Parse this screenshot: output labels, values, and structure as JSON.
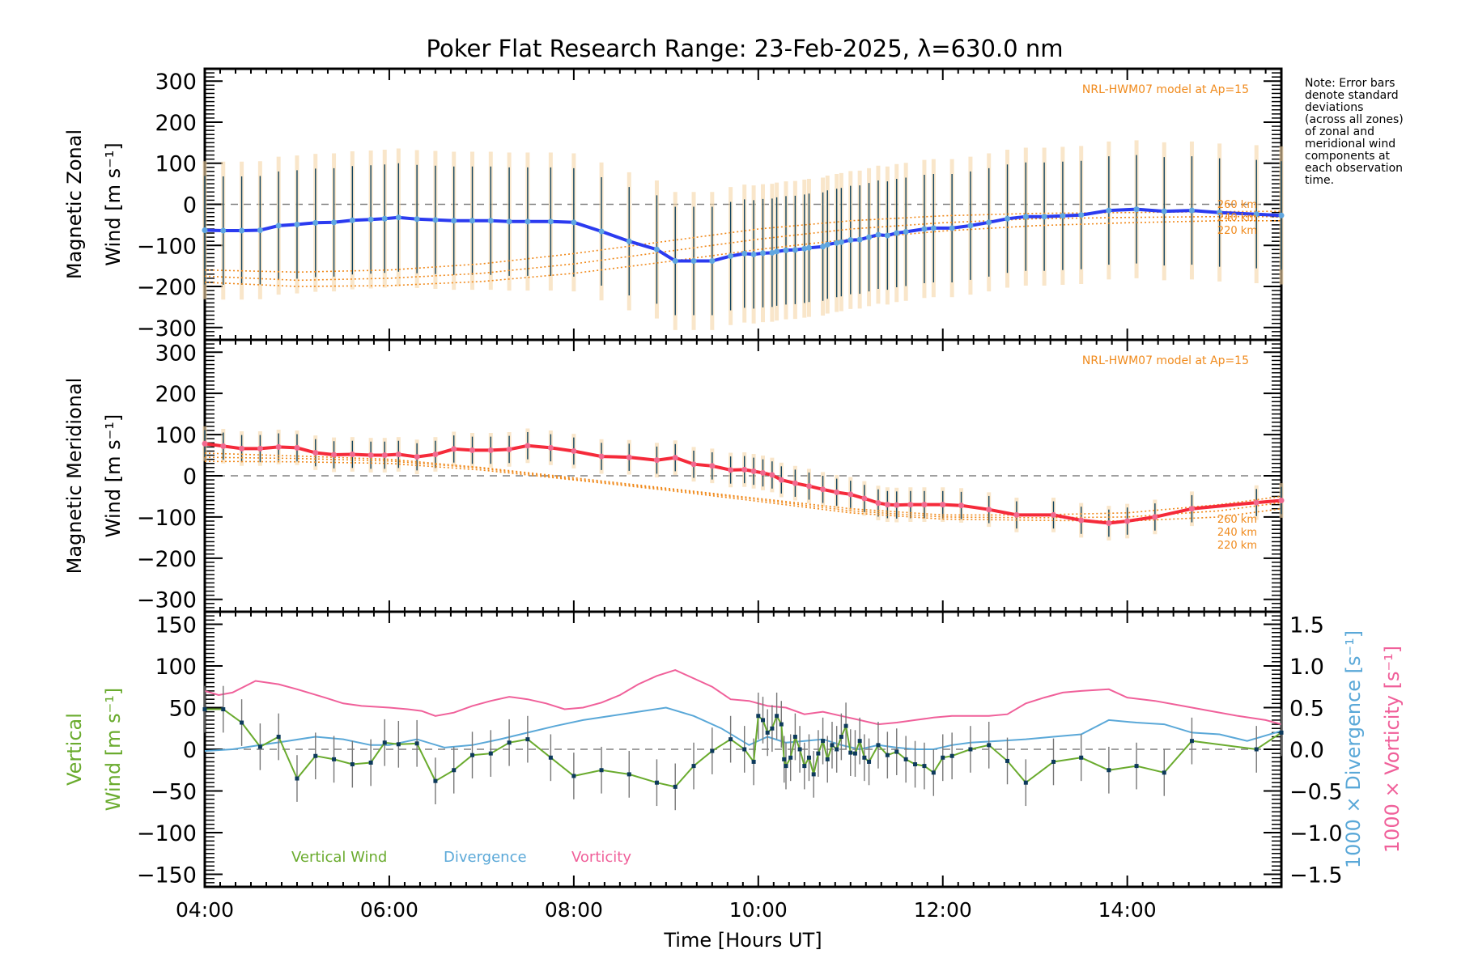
{
  "chart_data": {
    "type": "line",
    "title": "Poker Flat Research Range: 23-Feb-2025, λ=630.0 nm",
    "xlabel": "Time [Hours UT]",
    "x_ticks": [
      "04:00",
      "06:00",
      "08:00",
      "10:00",
      "12:00",
      "14:00"
    ],
    "xlim_hours": [
      4.0,
      15.67
    ],
    "note": "Note: Error bars\ndenote standard\ndeviations\n(across all zones)\nof zonal and\nmeridional wind\ncomponents at\neach observation\ntime.",
    "panels": [
      {
        "id": "zonal",
        "ylabel_line1": "Magnetic Zonal",
        "ylabel_line2": "Wind [m s⁻¹]",
        "ylim": [
          -330,
          330
        ],
        "y_ticks": [
          300,
          200,
          100,
          0,
          -100,
          -200,
          -300
        ],
        "model_label": "NRL-HWM07 model at Ap=15",
        "model_altitudes": [
          "260 km",
          "240 km",
          "220 km"
        ],
        "series": [
          {
            "name": "Zonal wind",
            "color": "#2b3bf0",
            "x": [
              4.0,
              4.2,
              4.4,
              4.6,
              4.8,
              5.0,
              5.2,
              5.4,
              5.6,
              5.8,
              5.95,
              6.1,
              6.3,
              6.5,
              6.7,
              6.9,
              7.1,
              7.3,
              7.5,
              7.75,
              8.0,
              8.3,
              8.6,
              8.9,
              9.1,
              9.3,
              9.5,
              9.7,
              9.85,
              9.95,
              10.05,
              10.15,
              10.2,
              10.3,
              10.4,
              10.5,
              10.55,
              10.7,
              10.75,
              10.85,
              10.9,
              11.0,
              11.1,
              11.2,
              11.3,
              11.4,
              11.5,
              11.6,
              11.8,
              11.9,
              12.1,
              12.3,
              12.5,
              12.7,
              12.9,
              13.1,
              13.3,
              13.5,
              13.8,
              14.1,
              14.4,
              14.7,
              15.0,
              15.4,
              15.67
            ],
            "y": [
              -63,
              -64,
              -64,
              -63,
              -52,
              -49,
              -45,
              -44,
              -39,
              -37,
              -35,
              -32,
              -36,
              -38,
              -40,
              -40,
              -40,
              -42,
              -42,
              -42,
              -44,
              -66,
              -90,
              -110,
              -138,
              -138,
              -138,
              -126,
              -120,
              -122,
              -119,
              -118,
              -115,
              -112,
              -111,
              -108,
              -106,
              -103,
              -98,
              -94,
              -92,
              -87,
              -86,
              -80,
              -74,
              -76,
              -70,
              -67,
              -60,
              -58,
              -58,
              -52,
              -44,
              -35,
              -30,
              -30,
              -28,
              -26,
              -15,
              -12,
              -17,
              -15,
              -20,
              -24,
              -27
            ]
          },
          {
            "name": "HWM07 260 km",
            "color": "#f08a1c",
            "dash": "dotted",
            "x": [
              4.0,
              5.0,
              6.0,
              7.0,
              8.0,
              9.0,
              10.0,
              11.0,
              12.0,
              13.0,
              14.0,
              15.0,
              15.67
            ],
            "y": [
              -160,
              -165,
              -160,
              -145,
              -120,
              -90,
              -60,
              -40,
              -28,
              -22,
              -20,
              -18,
              -17
            ]
          },
          {
            "name": "HWM07 240 km",
            "color": "#f08a1c",
            "dash": "dotted",
            "x": [
              4.0,
              5.0,
              6.0,
              7.0,
              8.0,
              9.0,
              10.0,
              11.0,
              12.0,
              13.0,
              14.0,
              15.0,
              15.67
            ],
            "y": [
              -175,
              -185,
              -180,
              -168,
              -145,
              -115,
              -85,
              -60,
              -45,
              -35,
              -32,
              -30,
              -30
            ]
          },
          {
            "name": "HWM07 220 km",
            "color": "#f08a1c",
            "dash": "dotted",
            "x": [
              4.0,
              5.0,
              6.0,
              7.0,
              8.0,
              9.0,
              10.0,
              11.0,
              12.0,
              13.0,
              14.0,
              15.0,
              15.67
            ],
            "y": [
              -190,
              -200,
              -198,
              -188,
              -168,
              -140,
              -110,
              -85,
              -65,
              -52,
              -45,
              -40,
              -40
            ]
          }
        ]
      },
      {
        "id": "meridional",
        "ylabel_line1": "Magnetic Meridional",
        "ylabel_line2": "Wind [m s⁻¹]",
        "ylim": [
          -330,
          330
        ],
        "y_ticks": [
          300,
          200,
          100,
          0,
          -100,
          -200,
          -300
        ],
        "model_label": "NRL-HWM07 model at Ap=15",
        "model_altitudes": [
          "260 km",
          "240 km",
          "220 km"
        ],
        "series": [
          {
            "name": "Meridional wind",
            "color": "#f52a3a",
            "x": [
              4.0,
              4.2,
              4.4,
              4.6,
              4.8,
              5.0,
              5.2,
              5.4,
              5.6,
              5.8,
              5.95,
              6.1,
              6.3,
              6.5,
              6.7,
              6.9,
              7.1,
              7.3,
              7.5,
              7.75,
              8.0,
              8.3,
              8.6,
              8.9,
              9.1,
              9.3,
              9.5,
              9.7,
              9.85,
              9.95,
              10.05,
              10.15,
              10.25,
              10.4,
              10.55,
              10.7,
              10.85,
              11.0,
              11.15,
              11.3,
              11.4,
              11.5,
              11.65,
              11.8,
              12.0,
              12.2,
              12.5,
              12.8,
              13.2,
              13.5,
              13.8,
              14.0,
              14.3,
              14.7,
              15.4,
              15.67
            ],
            "y": [
              78,
              72,
              66,
              66,
              70,
              68,
              56,
              51,
              52,
              50,
              50,
              52,
              46,
              52,
              65,
              62,
              62,
              64,
              73,
              68,
              60,
              47,
              45,
              38,
              44,
              28,
              24,
              14,
              15,
              11,
              7,
              2,
              -10,
              -18,
              -25,
              -33,
              -40,
              -45,
              -55,
              -66,
              -70,
              -71,
              -70,
              -70,
              -70,
              -72,
              -82,
              -95,
              -95,
              -108,
              -115,
              -110,
              -100,
              -80,
              -65,
              -60
            ]
          },
          {
            "name": "HWM07 260 km",
            "color": "#f08a1c",
            "dash": "dotted",
            "x": [
              4.0,
              5.0,
              6.0,
              7.0,
              8.0,
              9.0,
              10.0,
              11.0,
              12.0,
              13.0,
              14.0,
              15.0,
              15.67
            ],
            "y": [
              55,
              48,
              40,
              20,
              -5,
              -30,
              -55,
              -80,
              -95,
              -95,
              -90,
              -70,
              -50
            ]
          },
          {
            "name": "HWM07 240 km",
            "color": "#f08a1c",
            "dash": "dotted",
            "x": [
              4.0,
              5.0,
              6.0,
              7.0,
              8.0,
              9.0,
              10.0,
              11.0,
              12.0,
              13.0,
              14.0,
              15.0,
              15.67
            ],
            "y": [
              45,
              42,
              36,
              18,
              -8,
              -32,
              -58,
              -85,
              -100,
              -102,
              -100,
              -85,
              -65
            ]
          },
          {
            "name": "HWM07 220 km",
            "color": "#f08a1c",
            "dash": "dotted",
            "x": [
              4.0,
              5.0,
              6.0,
              7.0,
              8.0,
              9.0,
              10.0,
              11.0,
              12.0,
              13.0,
              14.0,
              15.0,
              15.67
            ],
            "y": [
              35,
              34,
              30,
              14,
              -10,
              -35,
              -62,
              -90,
              -105,
              -108,
              -110,
              -100,
              -80
            ]
          }
        ]
      },
      {
        "id": "vertical",
        "ylabel_line1": "Vertical",
        "ylabel_line2": "Wind [m s⁻¹]",
        "ylim": [
          -165,
          165
        ],
        "y_ticks": [
          150,
          100,
          50,
          0,
          -50,
          -100,
          -150
        ],
        "right_ylabel_1": "1000 × Divergence [s⁻¹]",
        "right_ylabel_2": "1000 × Vorticity [s⁻¹]",
        "right_ylim": [
          -1.65,
          1.65
        ],
        "right_ticks": [
          1.5,
          1.0,
          0.5,
          0.0,
          -0.5,
          -1.0,
          -1.5
        ],
        "legend": [
          "Vertical Wind",
          "Divergence",
          "Vorticity"
        ],
        "series": [
          {
            "name": "Vertical Wind",
            "color": "#6aab2e",
            "x": [
              4.0,
              4.2,
              4.4,
              4.6,
              4.8,
              5.0,
              5.2,
              5.4,
              5.6,
              5.8,
              5.95,
              6.1,
              6.3,
              6.5,
              6.7,
              6.9,
              7.1,
              7.3,
              7.5,
              7.75,
              8.0,
              8.3,
              8.6,
              8.9,
              9.1,
              9.3,
              9.5,
              9.7,
              9.85,
              9.95,
              10.0,
              10.05,
              10.1,
              10.15,
              10.2,
              10.25,
              10.28,
              10.3,
              10.35,
              10.4,
              10.45,
              10.5,
              10.55,
              10.6,
              10.65,
              10.7,
              10.75,
              10.8,
              10.85,
              10.9,
              10.95,
              11.0,
              11.05,
              11.1,
              11.15,
              11.2,
              11.3,
              11.4,
              11.5,
              11.6,
              11.7,
              11.8,
              11.9,
              12.0,
              12.1,
              12.3,
              12.5,
              12.7,
              12.9,
              13.2,
              13.5,
              13.8,
              14.1,
              14.4,
              14.7,
              15.4,
              15.67
            ],
            "y": [
              48,
              48,
              32,
              3,
              15,
              -35,
              -8,
              -12,
              -18,
              -16,
              8,
              6,
              7,
              -38,
              -25,
              -7,
              -5,
              8,
              12,
              -10,
              -32,
              -25,
              -30,
              -40,
              -45,
              -20,
              -2,
              12,
              0,
              -15,
              40,
              35,
              20,
              25,
              40,
              30,
              -12,
              -20,
              -10,
              15,
              0,
              -20,
              -10,
              -30,
              -5,
              10,
              -12,
              5,
              0,
              15,
              28,
              -4,
              -5,
              10,
              -10,
              -15,
              5,
              -7,
              -3,
              -12,
              -18,
              -20,
              -28,
              -10,
              -8,
              0,
              5,
              -14,
              -40,
              -15,
              -10,
              -25,
              -20,
              -28,
              10,
              0,
              20
            ]
          },
          {
            "name": "Divergence",
            "color": "#5aa8d8",
            "axis": "right",
            "x": [
              4.0,
              4.3,
              4.6,
              4.9,
              5.2,
              5.5,
              5.8,
              6.0,
              6.3,
              6.6,
              6.9,
              7.2,
              7.5,
              7.8,
              8.1,
              8.4,
              8.7,
              9.0,
              9.3,
              9.6,
              9.9,
              10.1,
              10.3,
              10.5,
              10.7,
              10.9,
              11.1,
              11.3,
              11.5,
              11.7,
              11.9,
              12.1,
              12.3,
              12.6,
              12.9,
              13.2,
              13.5,
              13.8,
              14.1,
              14.4,
              14.7,
              15.0,
              15.3,
              15.67
            ],
            "y": [
              -0.02,
              0.0,
              0.05,
              0.1,
              0.15,
              0.12,
              0.05,
              0.05,
              0.12,
              0.02,
              0.05,
              0.12,
              0.2,
              0.28,
              0.35,
              0.4,
              0.45,
              0.5,
              0.4,
              0.25,
              0.05,
              0.15,
              0.08,
              0.1,
              0.12,
              0.05,
              0.0,
              0.05,
              0.02,
              0.0,
              0.0,
              0.05,
              0.08,
              0.1,
              0.12,
              0.15,
              0.18,
              0.35,
              0.32,
              0.3,
              0.2,
              0.18,
              0.1,
              0.22
            ]
          },
          {
            "name": "Vorticity",
            "color": "#f0609a",
            "axis": "right",
            "x": [
              4.0,
              4.15,
              4.3,
              4.55,
              4.8,
              5.0,
              5.3,
              5.5,
              5.7,
              6.0,
              6.2,
              6.35,
              6.5,
              6.7,
              6.9,
              7.1,
              7.3,
              7.5,
              7.7,
              7.9,
              8.1,
              8.3,
              8.5,
              8.7,
              8.9,
              9.1,
              9.3,
              9.5,
              9.7,
              9.9,
              10.1,
              10.3,
              10.5,
              10.7,
              10.9,
              11.1,
              11.3,
              11.5,
              11.7,
              11.9,
              12.1,
              12.3,
              12.5,
              12.7,
              12.9,
              13.1,
              13.3,
              13.5,
              13.8,
              14.0,
              14.3,
              14.6,
              14.9,
              15.2,
              15.5,
              15.67
            ],
            "y": [
              0.7,
              0.65,
              0.68,
              0.82,
              0.78,
              0.72,
              0.62,
              0.55,
              0.52,
              0.5,
              0.48,
              0.46,
              0.4,
              0.44,
              0.52,
              0.58,
              0.63,
              0.6,
              0.55,
              0.48,
              0.5,
              0.56,
              0.65,
              0.78,
              0.88,
              0.95,
              0.85,
              0.75,
              0.6,
              0.58,
              0.52,
              0.5,
              0.42,
              0.45,
              0.4,
              0.35,
              0.3,
              0.32,
              0.35,
              0.38,
              0.4,
              0.4,
              0.4,
              0.42,
              0.55,
              0.62,
              0.68,
              0.7,
              0.72,
              0.62,
              0.58,
              0.52,
              0.46,
              0.4,
              0.35,
              0.3
            ]
          }
        ]
      }
    ]
  }
}
